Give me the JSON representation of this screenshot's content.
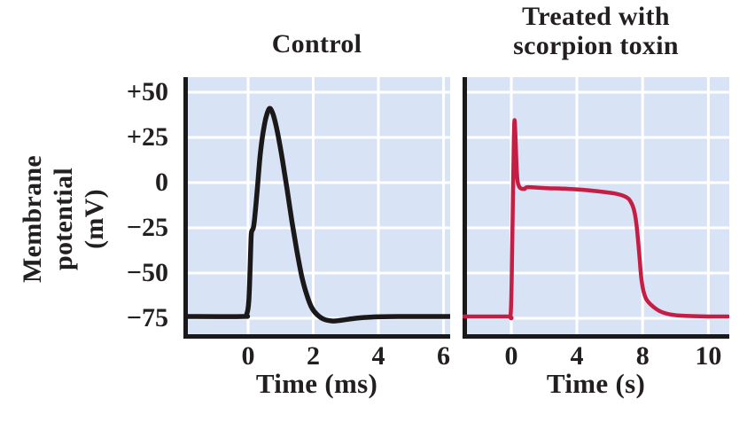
{
  "figure": {
    "background": "#ffffff",
    "text_color": "#231f20",
    "y_axis_label": {
      "text": "Membrane potential (mV)",
      "lines": [
        "Membrane",
        "potential",
        "(mV)"
      ]
    },
    "colors": {
      "plot_background": "#d9e3f6",
      "grid": "#ffffff",
      "axis": "#1b1819",
      "control_line": "#1b1819",
      "toxin_line": "#c41e45"
    }
  },
  "chart_data": [
    {
      "type": "line",
      "id": "control",
      "title": "Control",
      "title_lines": [
        "Control"
      ],
      "xlabel": "Time (ms)",
      "ylabel": "Membrane potential (mV)",
      "x_ticks": {
        "values": [
          0,
          2,
          4,
          6
        ],
        "labels": [
          "0",
          "2",
          "4",
          "6"
        ]
      },
      "y_ticks": {
        "values": [
          50,
          25,
          0,
          -25,
          -50,
          -75
        ],
        "labels": [
          "+50",
          "+25",
          "0",
          "−25",
          "−50",
          "−75"
        ]
      },
      "x_range_approx": [
        -2,
        6.2
      ],
      "y_range_approx": [
        -85,
        58
      ],
      "grid": true,
      "line_color": "#1b1819",
      "series": [
        {
          "name": "membrane-potential-control",
          "points": [
            [
              -1.99,
              -74
            ],
            [
              -0.2,
              -74
            ],
            [
              -0.05,
              -73
            ],
            [
              0.02,
              -66
            ],
            [
              0.06,
              -48
            ],
            [
              0.09,
              -31
            ],
            [
              0.11,
              -27
            ],
            [
              0.16,
              -25
            ],
            [
              0.2,
              -20
            ],
            [
              0.28,
              -4
            ],
            [
              0.38,
              17
            ],
            [
              0.5,
              32
            ],
            [
              0.6,
              39
            ],
            [
              0.68,
              41
            ],
            [
              0.78,
              37
            ],
            [
              0.9,
              28
            ],
            [
              1.05,
              13
            ],
            [
              1.2,
              -4
            ],
            [
              1.35,
              -22
            ],
            [
              1.5,
              -38
            ],
            [
              1.65,
              -52
            ],
            [
              1.8,
              -62
            ],
            [
              1.95,
              -69
            ],
            [
              2.12,
              -73
            ],
            [
              2.32,
              -75.5
            ],
            [
              2.6,
              -76.5
            ],
            [
              2.9,
              -76
            ],
            [
              3.3,
              -75
            ],
            [
              3.8,
              -74.3
            ],
            [
              4.6,
              -74
            ],
            [
              6.2,
              -74
            ]
          ]
        }
      ]
    },
    {
      "type": "line",
      "id": "scorpion-toxin",
      "title": "Treated with scorpion toxin",
      "title_lines": [
        "Treated with",
        "scorpion toxin"
      ],
      "xlabel": "Time (s)",
      "ylabel": "Membrane potential (mV)",
      "x_ticks": {
        "values": [
          0,
          4,
          8,
          10
        ],
        "labels": [
          "0",
          "4",
          "8",
          "10"
        ]
      },
      "y_ticks": {
        "values": [
          50,
          25,
          0,
          -25,
          -50,
          -75
        ],
        "labels": [
          "+50",
          "+25",
          "0",
          "−25",
          "−50",
          "−75"
        ]
      },
      "x_range_approx": [
        -2.9,
        10.6
      ],
      "y_range_approx": [
        -85,
        58
      ],
      "grid": true,
      "line_color": "#c41e45",
      "series": [
        {
          "name": "membrane-potential-toxin",
          "points": [
            [
              -2.9,
              -74
            ],
            [
              -0.25,
              -74
            ],
            [
              -0.05,
              -73.5
            ],
            [
              0.02,
              -55
            ],
            [
              0.08,
              -20
            ],
            [
              0.14,
              15
            ],
            [
              0.19,
              34
            ],
            [
              0.25,
              27
            ],
            [
              0.35,
              4
            ],
            [
              0.5,
              -2.5
            ],
            [
              0.8,
              -3.5
            ],
            [
              1.0,
              -2.5
            ],
            [
              2.0,
              -3
            ],
            [
              3.5,
              -3.5
            ],
            [
              5.0,
              -4.5
            ],
            [
              6.3,
              -6
            ],
            [
              7.0,
              -8
            ],
            [
              7.3,
              -11
            ],
            [
              7.5,
              -16
            ],
            [
              7.65,
              -25
            ],
            [
              7.8,
              -40
            ],
            [
              7.95,
              -55
            ],
            [
              8.1,
              -64
            ],
            [
              8.35,
              -69
            ],
            [
              8.65,
              -72
            ],
            [
              9.1,
              -73.5
            ],
            [
              10.0,
              -74
            ],
            [
              10.6,
              -74
            ]
          ]
        }
      ]
    }
  ]
}
